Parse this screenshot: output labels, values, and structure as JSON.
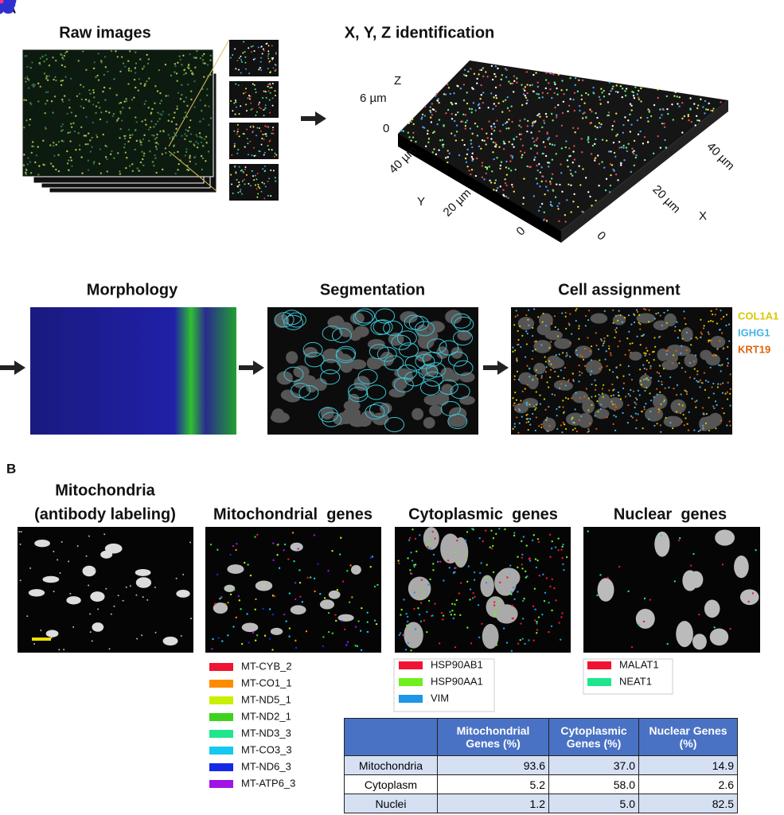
{
  "panel_a": {
    "label": "A",
    "raw_images_title": "Raw images",
    "xyz_title": "X, Y, Z identification",
    "axis_labels": {
      "z": "Z",
      "z_top": "6 µm",
      "z_zero": "0",
      "y_top": "40 µm",
      "y": "Y",
      "y_mid": "20 µm",
      "y_zero": "0",
      "x_zero": "0",
      "x_mid": "20 µm",
      "x": "X",
      "x_top": "40 µm"
    },
    "morphology_title": "Morphology",
    "segmentation_title": "Segmentation",
    "cell_assignment_title": "Cell assignment",
    "cell_genes": [
      {
        "name": "COL1A1",
        "color": "#d8c800"
      },
      {
        "name": "IGHG1",
        "color": "#4ab4e6"
      },
      {
        "name": "KRT19",
        "color": "#e0620e"
      }
    ]
  },
  "panel_b": {
    "label": "B",
    "mitochondria_title": [
      "Mitochondria",
      "(antibody labeling)"
    ],
    "mito_genes_title": "Mitochondrial  genes",
    "cyto_genes_title": "Cytoplasmic  genes",
    "nuclear_genes_title": "Nuclear  genes",
    "mito_legend": [
      {
        "name": "MT-CYB_2",
        "color": "#f01432"
      },
      {
        "name": "MT-CO1_1",
        "color": "#ff8c00"
      },
      {
        "name": "MT-ND5_1",
        "color": "#c8f000"
      },
      {
        "name": "MT-ND2_1",
        "color": "#3cd21e"
      },
      {
        "name": "MT-ND3_3",
        "color": "#1ee68c"
      },
      {
        "name": "MT-CO3_3",
        "color": "#14c8f0"
      },
      {
        "name": "MT-ND6_3",
        "color": "#1428e6"
      },
      {
        "name": "MT-ATP6_3",
        "color": "#a014e6"
      }
    ],
    "cyto_legend": [
      {
        "name": "HSP90AB1",
        "color": "#f01432"
      },
      {
        "name": "HSP90AA1",
        "color": "#6ef01e"
      },
      {
        "name": "VIM",
        "color": "#1e96e6"
      }
    ],
    "nuclear_legend": [
      {
        "name": "MALAT1",
        "color": "#f01432"
      },
      {
        "name": "NEAT1",
        "color": "#1ee68c"
      }
    ],
    "table": {
      "columns": [
        "Mitochondrial Genes (%)",
        "Cytoplasmic Genes (%)",
        "Nuclear Genes (%)"
      ],
      "rows": [
        {
          "label": "Mitochondria",
          "values": [
            "93.6",
            "37.0",
            "14.9"
          ]
        },
        {
          "label": "Cytoplasm",
          "values": [
            "5.2",
            "58.0",
            "2.6"
          ]
        },
        {
          "label": "Nuclei",
          "values": [
            "1.2",
            "5.0",
            "82.5"
          ]
        }
      ]
    }
  }
}
